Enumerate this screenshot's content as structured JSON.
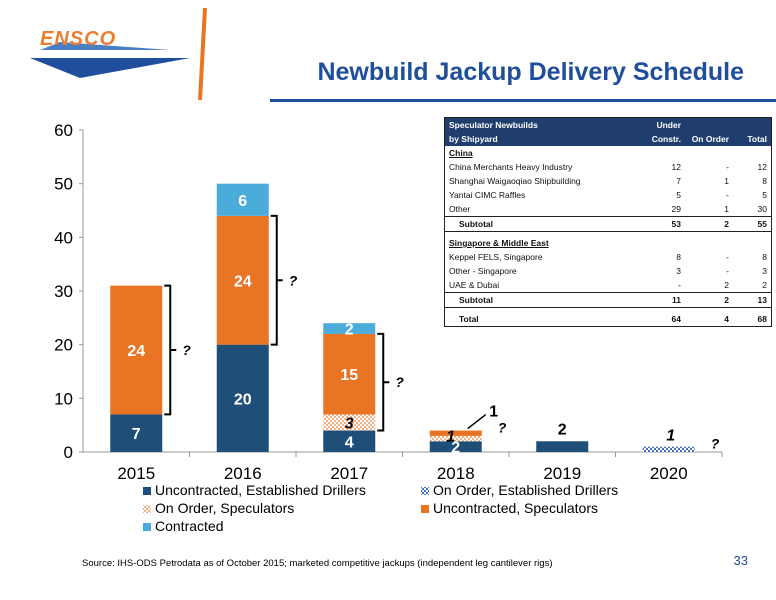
{
  "header": {
    "logo_text": "ENSCO",
    "title": "Newbuild Jackup Delivery Schedule"
  },
  "colors": {
    "uncontracted_established": "#1f4e79",
    "on_order_established": "#4472c4",
    "on_order_speculators": "#f4b183",
    "uncontracted_speculators": "#e97423",
    "contracted": "#4bacdc",
    "title_blue": "#1f4e9c"
  },
  "chart_data": {
    "type": "bar",
    "stacked": true,
    "categories": [
      "2015",
      "2016",
      "2017",
      "2018",
      "2019",
      "2020"
    ],
    "ylim": [
      0,
      60
    ],
    "yticks": [
      0,
      10,
      20,
      30,
      40,
      50,
      60
    ],
    "legend_position": "bottom",
    "series": [
      {
        "name": "Uncontracted, Established Drillers",
        "key": "uncontracted_established",
        "pattern": "solid",
        "values": [
          7,
          20,
          4,
          2,
          2,
          0
        ]
      },
      {
        "name": "On Order, Established Drillers",
        "key": "on_order_established",
        "pattern": "hatch",
        "values": [
          0,
          0,
          0,
          0,
          0,
          1
        ]
      },
      {
        "name": "On Order, Speculators",
        "key": "on_order_speculators",
        "pattern": "hatch",
        "values": [
          0,
          0,
          3,
          1,
          0,
          0
        ]
      },
      {
        "name": "Uncontracted, Speculators",
        "key": "uncontracted_speculators",
        "pattern": "solid",
        "values": [
          24,
          24,
          15,
          1,
          0,
          0
        ]
      },
      {
        "name": "Contracted",
        "key": "contracted",
        "pattern": "solid",
        "values": [
          0,
          6,
          2,
          0,
          0,
          0
        ]
      }
    ],
    "data_labels": [
      {
        "category": "2015",
        "value": 7,
        "text": "7",
        "series": "uncontracted_established",
        "inside": true,
        "color": "#ffffff"
      },
      {
        "category": "2015",
        "value": 24,
        "text": "24",
        "series": "uncontracted_speculators",
        "inside": true,
        "color": "#ffffff"
      },
      {
        "category": "2016",
        "value": 20,
        "text": "20",
        "series": "uncontracted_established",
        "inside": true,
        "color": "#ffffff"
      },
      {
        "category": "2016",
        "value": 24,
        "text": "24",
        "series": "uncontracted_speculators",
        "inside": true,
        "color": "#ffffff"
      },
      {
        "category": "2016",
        "value": 6,
        "text": "6",
        "series": "contracted",
        "inside": true,
        "color": "#ffffff"
      },
      {
        "category": "2017",
        "value": 4,
        "text": "4",
        "series": "uncontracted_established",
        "inside": true,
        "color": "#ffffff"
      },
      {
        "category": "2017",
        "value": 3,
        "text": "3",
        "series": "on_order_speculators",
        "inside": true,
        "color": "#000000",
        "italic": true
      },
      {
        "category": "2017",
        "value": 15,
        "text": "15",
        "series": "uncontracted_speculators",
        "inside": true,
        "color": "#ffffff"
      },
      {
        "category": "2017",
        "value": 2,
        "text": "2",
        "series": "contracted",
        "inside": true,
        "color": "#ffffff"
      },
      {
        "category": "2018",
        "value": 2,
        "text": "2",
        "series": "uncontracted_established",
        "inside": true,
        "color": "#ffffff"
      },
      {
        "category": "2018",
        "value": 1,
        "text": "1",
        "series": "on_order_speculators",
        "inside": false,
        "color": "#000000",
        "italic": true
      },
      {
        "category": "2018",
        "value": 1,
        "text": "1",
        "series": "uncontracted_speculators",
        "inside": false,
        "color": "#000000",
        "callout": true
      },
      {
        "category": "2019",
        "value": 2,
        "text": "2",
        "series": "uncontracted_established",
        "inside": false,
        "color": "#000000"
      },
      {
        "category": "2020",
        "value": 1,
        "text": "1",
        "series": "on_order_established",
        "inside": false,
        "color": "#000000",
        "italic": true
      }
    ],
    "brackets": [
      {
        "category": "2015",
        "from": 7,
        "to": 31,
        "label": "?"
      },
      {
        "category": "2016",
        "from": 20,
        "to": 44,
        "label": "?"
      },
      {
        "category": "2017",
        "from": 4,
        "to": 22,
        "label": "?"
      },
      {
        "category": "2018",
        "from": 0,
        "to": 4,
        "label": "?",
        "tick_only": true
      },
      {
        "category": "2020",
        "from": 0,
        "to": 1,
        "label": "?",
        "tick_only": true
      }
    ]
  },
  "table": {
    "header": {
      "col0_line1": "Speculator Newbuilds",
      "col0_line2": "by Shipyard",
      "col1_line1": "Under",
      "col1_line2": "Constr.",
      "col2": "On Order",
      "col3": "Total"
    },
    "sections": [
      {
        "name": "China",
        "rows": [
          {
            "yard": "China Merchants Heavy Industry",
            "constr": "12",
            "order": "-",
            "total": "12"
          },
          {
            "yard": "Shanghai Waigaoqiao Shipbuilding",
            "constr": "7",
            "order": "1",
            "total": "8"
          },
          {
            "yard": "Yantai CIMC Raffles",
            "constr": "5",
            "order": "-",
            "total": "5"
          },
          {
            "yard": "Other",
            "constr": "29",
            "order": "1",
            "total": "30"
          }
        ],
        "subtotal": {
          "label": "Subtotal",
          "constr": "53",
          "order": "2",
          "total": "55"
        }
      },
      {
        "name": "Singapore & Middle East",
        "rows": [
          {
            "yard": "Keppel FELS, Singapore",
            "constr": "8",
            "order": "-",
            "total": "8"
          },
          {
            "yard": "Other - Singapore",
            "constr": "3",
            "order": "-",
            "total": "3"
          },
          {
            "yard": "UAE & Dubai",
            "constr": "-",
            "order": "2",
            "total": "2"
          }
        ],
        "subtotal": {
          "label": "Subtotal",
          "constr": "11",
          "order": "2",
          "total": "13"
        }
      }
    ],
    "total": {
      "label": "Total",
      "constr": "64",
      "order": "4",
      "total": "68"
    }
  },
  "footer": {
    "source": "Source: IHS-ODS Petrodata as of October 2015; marketed competitive jackups (independent leg cantilever rigs)",
    "page_number": "33"
  }
}
